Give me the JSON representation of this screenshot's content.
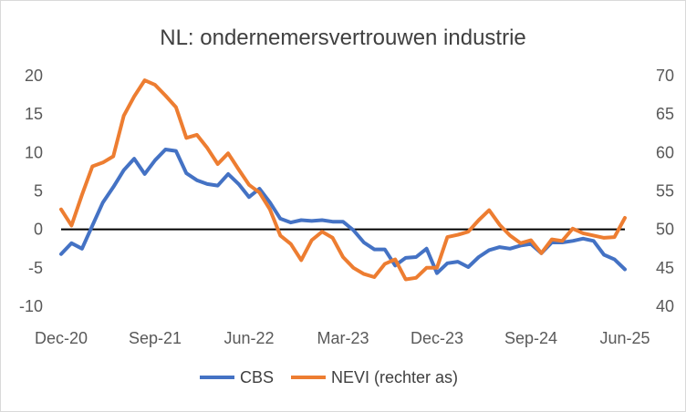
{
  "chart_data": {
    "type": "line",
    "title": "NL: ondernemersvertrouwen industrie",
    "x_tick_labels": [
      "Dec-20",
      "Sep-21",
      "Jun-22",
      "Mar-23",
      "Dec-23",
      "Sep-24",
      "Jun-25"
    ],
    "x_tick_indices": [
      0,
      9,
      18,
      27,
      36,
      45,
      54
    ],
    "y_left": {
      "ticks": [
        "20",
        "15",
        "10",
        "5",
        "0",
        "-5",
        "-10"
      ],
      "range": [
        -10,
        20
      ]
    },
    "y_right": {
      "ticks": [
        "70",
        "65",
        "60",
        "55",
        "50",
        "45",
        "40"
      ],
      "range": [
        40,
        70
      ]
    },
    "zero_line": 0,
    "legend_position": "bottom",
    "series": [
      {
        "name": "CBS",
        "axis": "left",
        "color": "#4472C4",
        "values": [
          -3.2,
          -1.8,
          -2.5,
          0.5,
          3.5,
          5.5,
          7.7,
          9.2,
          7.2,
          9.0,
          10.4,
          10.2,
          7.3,
          6.4,
          5.9,
          5.7,
          7.2,
          5.9,
          4.2,
          5.3,
          3.5,
          1.4,
          0.9,
          1.2,
          1.1,
          1.2,
          1.0,
          1.0,
          -0.1,
          -1.7,
          -2.6,
          -2.6,
          -4.7,
          -3.7,
          -3.6,
          -2.5,
          -5.7,
          -4.4,
          -4.2,
          -4.9,
          -3.6,
          -2.7,
          -2.3,
          -2.5,
          -2.1,
          -1.9,
          -3.1,
          -1.7,
          -1.7,
          -1.5,
          -1.2,
          -1.5,
          -3.3,
          -3.9,
          -5.2
        ]
      },
      {
        "name": "NEVI (rechter as)",
        "axis": "right",
        "color": "#ED7D31",
        "values": [
          52.6,
          50.5,
          54.5,
          58.2,
          58.7,
          59.5,
          64.8,
          67.3,
          69.4,
          68.8,
          67.4,
          65.9,
          61.9,
          62.3,
          60.6,
          58.5,
          59.9,
          57.8,
          55.8,
          54.8,
          52.6,
          49.2,
          48.1,
          46.0,
          48.6,
          49.7,
          48.9,
          46.4,
          45.0,
          44.2,
          43.8,
          45.5,
          46.1,
          43.5,
          43.7,
          45.0,
          45.0,
          49.0,
          49.3,
          49.7,
          51.2,
          52.5,
          50.6,
          49.2,
          48.2,
          48.6,
          46.9,
          48.7,
          48.5,
          50.1,
          49.5,
          49.2,
          48.9,
          49.0,
          51.5
        ]
      }
    ]
  }
}
